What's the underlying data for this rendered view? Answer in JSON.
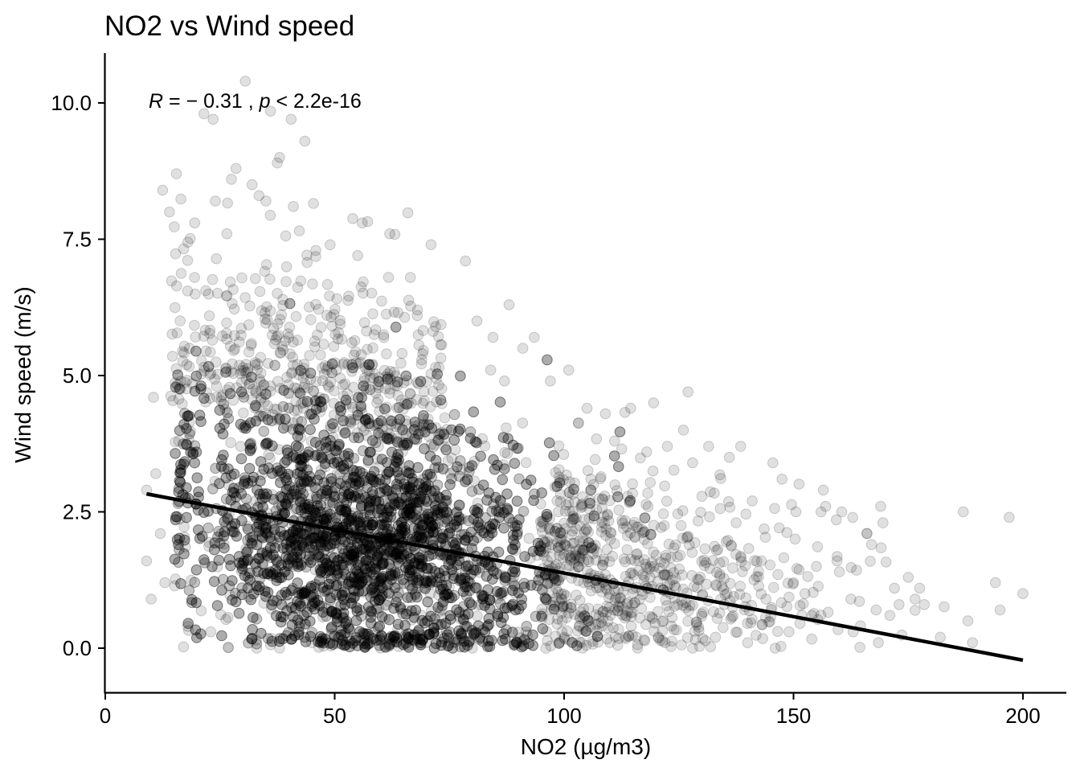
{
  "chart_data": {
    "type": "scatter",
    "title": "NO2 vs Wind speed",
    "xlabel": "NO2 (µg/m3)",
    "ylabel": "Wind speed (m/s)",
    "xlim": [
      0,
      210
    ],
    "ylim": [
      -0.7,
      10.9
    ],
    "x_ticks": [
      0,
      50,
      100,
      150,
      200
    ],
    "x_tick_labels": [
      "0",
      "50",
      "100",
      "150",
      "200"
    ],
    "y_ticks": [
      0,
      2.5,
      5,
      7.5,
      10
    ],
    "y_tick_labels": [
      "0.0",
      "2.5",
      "5.0",
      "7.5",
      "10.0"
    ],
    "grid": false,
    "point_color": "#000000",
    "point_opacity": 0.12,
    "annotation": {
      "r_symbol": "R",
      "r_value": " = − 0.31 , ",
      "p_symbol": "p",
      "p_value": " < 2.2e-16"
    },
    "regression_line": {
      "x": [
        9,
        200
      ],
      "y": [
        2.83,
        -0.22
      ],
      "color": "#000000"
    },
    "series": [
      {
        "points": [
          [
            30.5,
            10.4
          ],
          [
            21.5,
            9.8
          ],
          [
            23.5,
            9.7
          ],
          [
            36,
            9.85
          ],
          [
            40.5,
            9.7
          ],
          [
            38,
            9.0
          ],
          [
            37.5,
            8.9
          ],
          [
            43.5,
            9.3
          ],
          [
            28.5,
            8.8
          ],
          [
            15.5,
            8.7
          ],
          [
            27.5,
            8.6
          ],
          [
            12.5,
            8.4
          ],
          [
            32,
            8.5
          ],
          [
            24,
            8.2
          ],
          [
            33.5,
            8.3
          ],
          [
            35,
            8.2
          ],
          [
            41,
            8.1
          ],
          [
            19.5,
            7.8
          ],
          [
            14,
            8.0
          ],
          [
            26.5,
            7.6
          ],
          [
            56,
            7.8
          ],
          [
            62,
            7.6
          ],
          [
            71,
            7.4
          ],
          [
            78.5,
            7.1
          ],
          [
            49,
            7.4
          ],
          [
            55,
            7.2
          ],
          [
            66.5,
            6.8
          ],
          [
            88,
            6.3
          ],
          [
            68,
            6.1
          ],
          [
            81,
            6.0
          ],
          [
            72,
            5.9
          ],
          [
            84.5,
            5.7
          ],
          [
            93.5,
            5.7
          ],
          [
            91,
            5.5
          ],
          [
            84,
            5.1
          ],
          [
            87,
            4.9
          ],
          [
            101,
            5.1
          ],
          [
            97,
            4.9
          ],
          [
            105,
            4.4
          ],
          [
            109,
            4.3
          ],
          [
            111,
            3.8
          ],
          [
            114.5,
            4.4
          ],
          [
            119.5,
            4.5
          ],
          [
            127,
            4.7
          ],
          [
            126,
            4.0
          ],
          [
            118,
            3.6
          ],
          [
            122.5,
            3.7
          ],
          [
            128,
            3.4
          ],
          [
            131.5,
            3.7
          ],
          [
            136,
            3.5
          ],
          [
            138.5,
            3.7
          ],
          [
            145.5,
            3.4
          ],
          [
            147.5,
            3.1
          ],
          [
            141,
            2.7
          ],
          [
            150.5,
            2.5
          ],
          [
            156.5,
            2.9
          ],
          [
            156,
            2.5
          ],
          [
            157,
            2.6
          ],
          [
            160.5,
            2.5
          ],
          [
            169,
            2.6
          ],
          [
            187,
            2.5
          ],
          [
            197,
            2.4
          ],
          [
            166,
            2.1
          ],
          [
            167,
            1.9
          ],
          [
            169.5,
            2.3
          ],
          [
            159.5,
            1.6
          ],
          [
            160,
            1.4
          ],
          [
            155,
            1.5
          ],
          [
            150,
            1.2
          ],
          [
            143,
            1.6
          ],
          [
            137.5,
            2.3
          ],
          [
            135.5,
            1.0
          ],
          [
            144,
            0.9
          ],
          [
            152.5,
            1.0
          ],
          [
            154,
            0.6
          ],
          [
            162.5,
            0.9
          ],
          [
            168,
            0.7
          ],
          [
            171,
            0.6
          ],
          [
            175,
            1.3
          ],
          [
            177.5,
            1.1
          ],
          [
            176.5,
            0.9
          ],
          [
            178.5,
            0.8
          ],
          [
            173,
            0.8
          ],
          [
            172,
            1.1
          ],
          [
            194,
            1.2
          ],
          [
            200,
            1.0
          ],
          [
            195,
            0.7
          ],
          [
            188,
            0.5
          ],
          [
            189,
            0.1
          ],
          [
            182,
            0.2
          ],
          [
            9,
            1.6
          ],
          [
            10,
            0.9
          ],
          [
            9,
            2.9
          ],
          [
            11,
            3.2
          ],
          [
            10.5,
            4.6
          ],
          [
            12,
            2.1
          ],
          [
            13,
            1.2
          ],
          [
            16,
            3.8
          ],
          [
            18,
            0.4
          ],
          [
            23,
            0.3
          ],
          [
            33,
            0.0
          ],
          [
            38,
            0.0
          ],
          [
            45,
            0.1
          ],
          [
            60,
            0.0
          ],
          [
            70,
            0.1
          ],
          [
            80,
            0.0
          ],
          [
            90,
            0.1
          ],
          [
            96,
            0.0
          ],
          [
            100,
            0.2
          ],
          [
            104,
            0.0
          ],
          [
            110,
            0.1
          ],
          [
            116,
            0.0
          ],
          [
            122,
            0.1
          ],
          [
            128,
            0.0
          ],
          [
            133,
            0.2
          ],
          [
            140,
            0.1
          ],
          [
            146,
            0.0
          ],
          [
            149,
            0.3
          ],
          [
            163,
            0.3
          ],
          [
            168.5,
            0.1
          ]
        ]
      }
    ]
  }
}
